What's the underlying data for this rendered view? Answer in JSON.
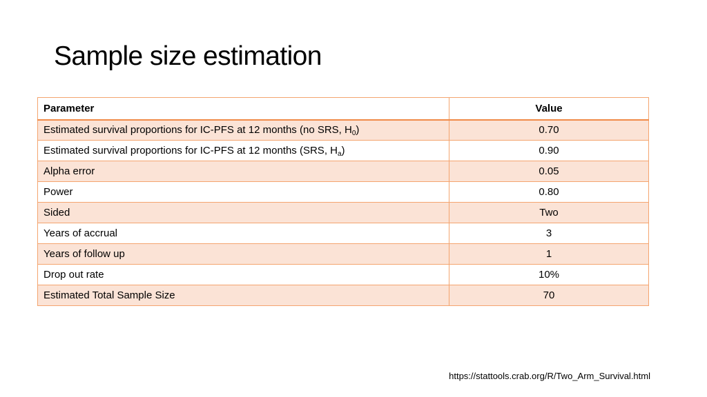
{
  "slide": {
    "title": "Sample size estimation",
    "source_url": "https://stattools.crab.org/R/Two_Arm_Survival.html"
  },
  "table": {
    "headers": {
      "parameter": "Parameter",
      "value": "Value"
    },
    "rows": [
      {
        "label": "Estimated survival proportions for IC-PFS at 12 months (no SRS, H",
        "sub": "0",
        "suffix": ")",
        "value": "0.70"
      },
      {
        "label": "Estimated survival proportions for IC-PFS at 12 months (SRS, H",
        "sub": "a",
        "suffix": ")",
        "value": "0.90"
      },
      {
        "label": "Alpha error",
        "value": "0.05"
      },
      {
        "label": "Power",
        "value": "0.80"
      },
      {
        "label": "Sided",
        "value": "Two"
      },
      {
        "label": "Years of accrual",
        "value": "3"
      },
      {
        "label": "Years of follow up",
        "value": "1"
      },
      {
        "label": "Drop out rate",
        "value": "10%"
      },
      {
        "label": "Estimated Total Sample Size",
        "value": "70"
      }
    ]
  },
  "colors": {
    "border": "#f4a46e",
    "header_rule": "#f08a47",
    "band": "#fbe3d6"
  }
}
